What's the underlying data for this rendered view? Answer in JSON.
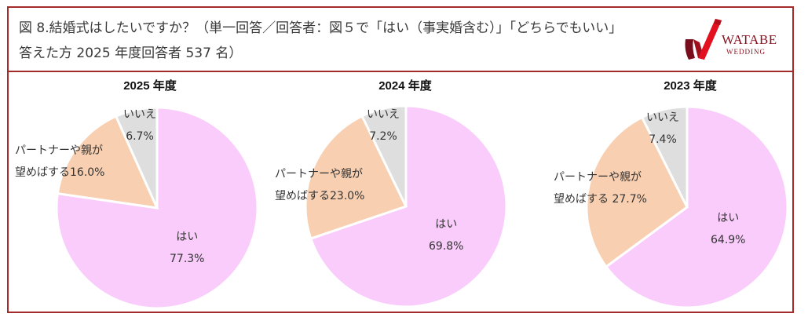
{
  "header": {
    "title_line1": "図 8.結婚式はしたいですか？（単一回答／回答者：図５で「はい（事実婚含む）」「どちらでもいい」",
    "title_line2": "答えた方 2025 年度回答者 537 名）",
    "logo": {
      "name": "WATABE",
      "sub": "WEDDING",
      "brand_color": "#c8102e"
    }
  },
  "colors": {
    "yes": "#f9ccfb",
    "partner": "#f8cfb0",
    "no": "#dedede",
    "border": "#a52a2a"
  },
  "panels": [
    {
      "title": "2025 年度",
      "yes_label": "はい",
      "yes_value": "77.3%",
      "partner_label_1": "パートナーや親が",
      "partner_label_2": "望めばする16.0%",
      "no_label": "いいえ",
      "no_value": "6.7%"
    },
    {
      "title": "2024 年度",
      "yes_label": "はい",
      "yes_value": "69.8%",
      "partner_label_1": "パートナーや親が",
      "partner_label_2": "望めばする23.0%",
      "no_label": "いいえ",
      "no_value": "7.2%"
    },
    {
      "title": "2023 年度",
      "yes_label": "はい",
      "yes_value": "64.9%",
      "partner_label_1": "パートナーや親が",
      "partner_label_2": "望めばする 27.7%",
      "no_label": "いいえ",
      "no_value": "7.4%"
    }
  ],
  "chart_data": [
    {
      "type": "pie",
      "title": "2025 年度",
      "categories": [
        "はい",
        "パートナーや親が望めばする",
        "いいえ"
      ],
      "values": [
        77.3,
        16.0,
        6.7
      ],
      "colors": [
        "#f9ccfb",
        "#f8cfb0",
        "#dedede"
      ]
    },
    {
      "type": "pie",
      "title": "2024 年度",
      "categories": [
        "はい",
        "パートナーや親が望めばする",
        "いいえ"
      ],
      "values": [
        69.8,
        23.0,
        7.2
      ],
      "colors": [
        "#f9ccfb",
        "#f8cfb0",
        "#dedede"
      ]
    },
    {
      "type": "pie",
      "title": "2023 年度",
      "categories": [
        "はい",
        "パートナーや親が望めばする",
        "いいえ"
      ],
      "values": [
        64.9,
        27.7,
        7.4
      ],
      "colors": [
        "#f9ccfb",
        "#f8cfb0",
        "#dedede"
      ]
    }
  ]
}
